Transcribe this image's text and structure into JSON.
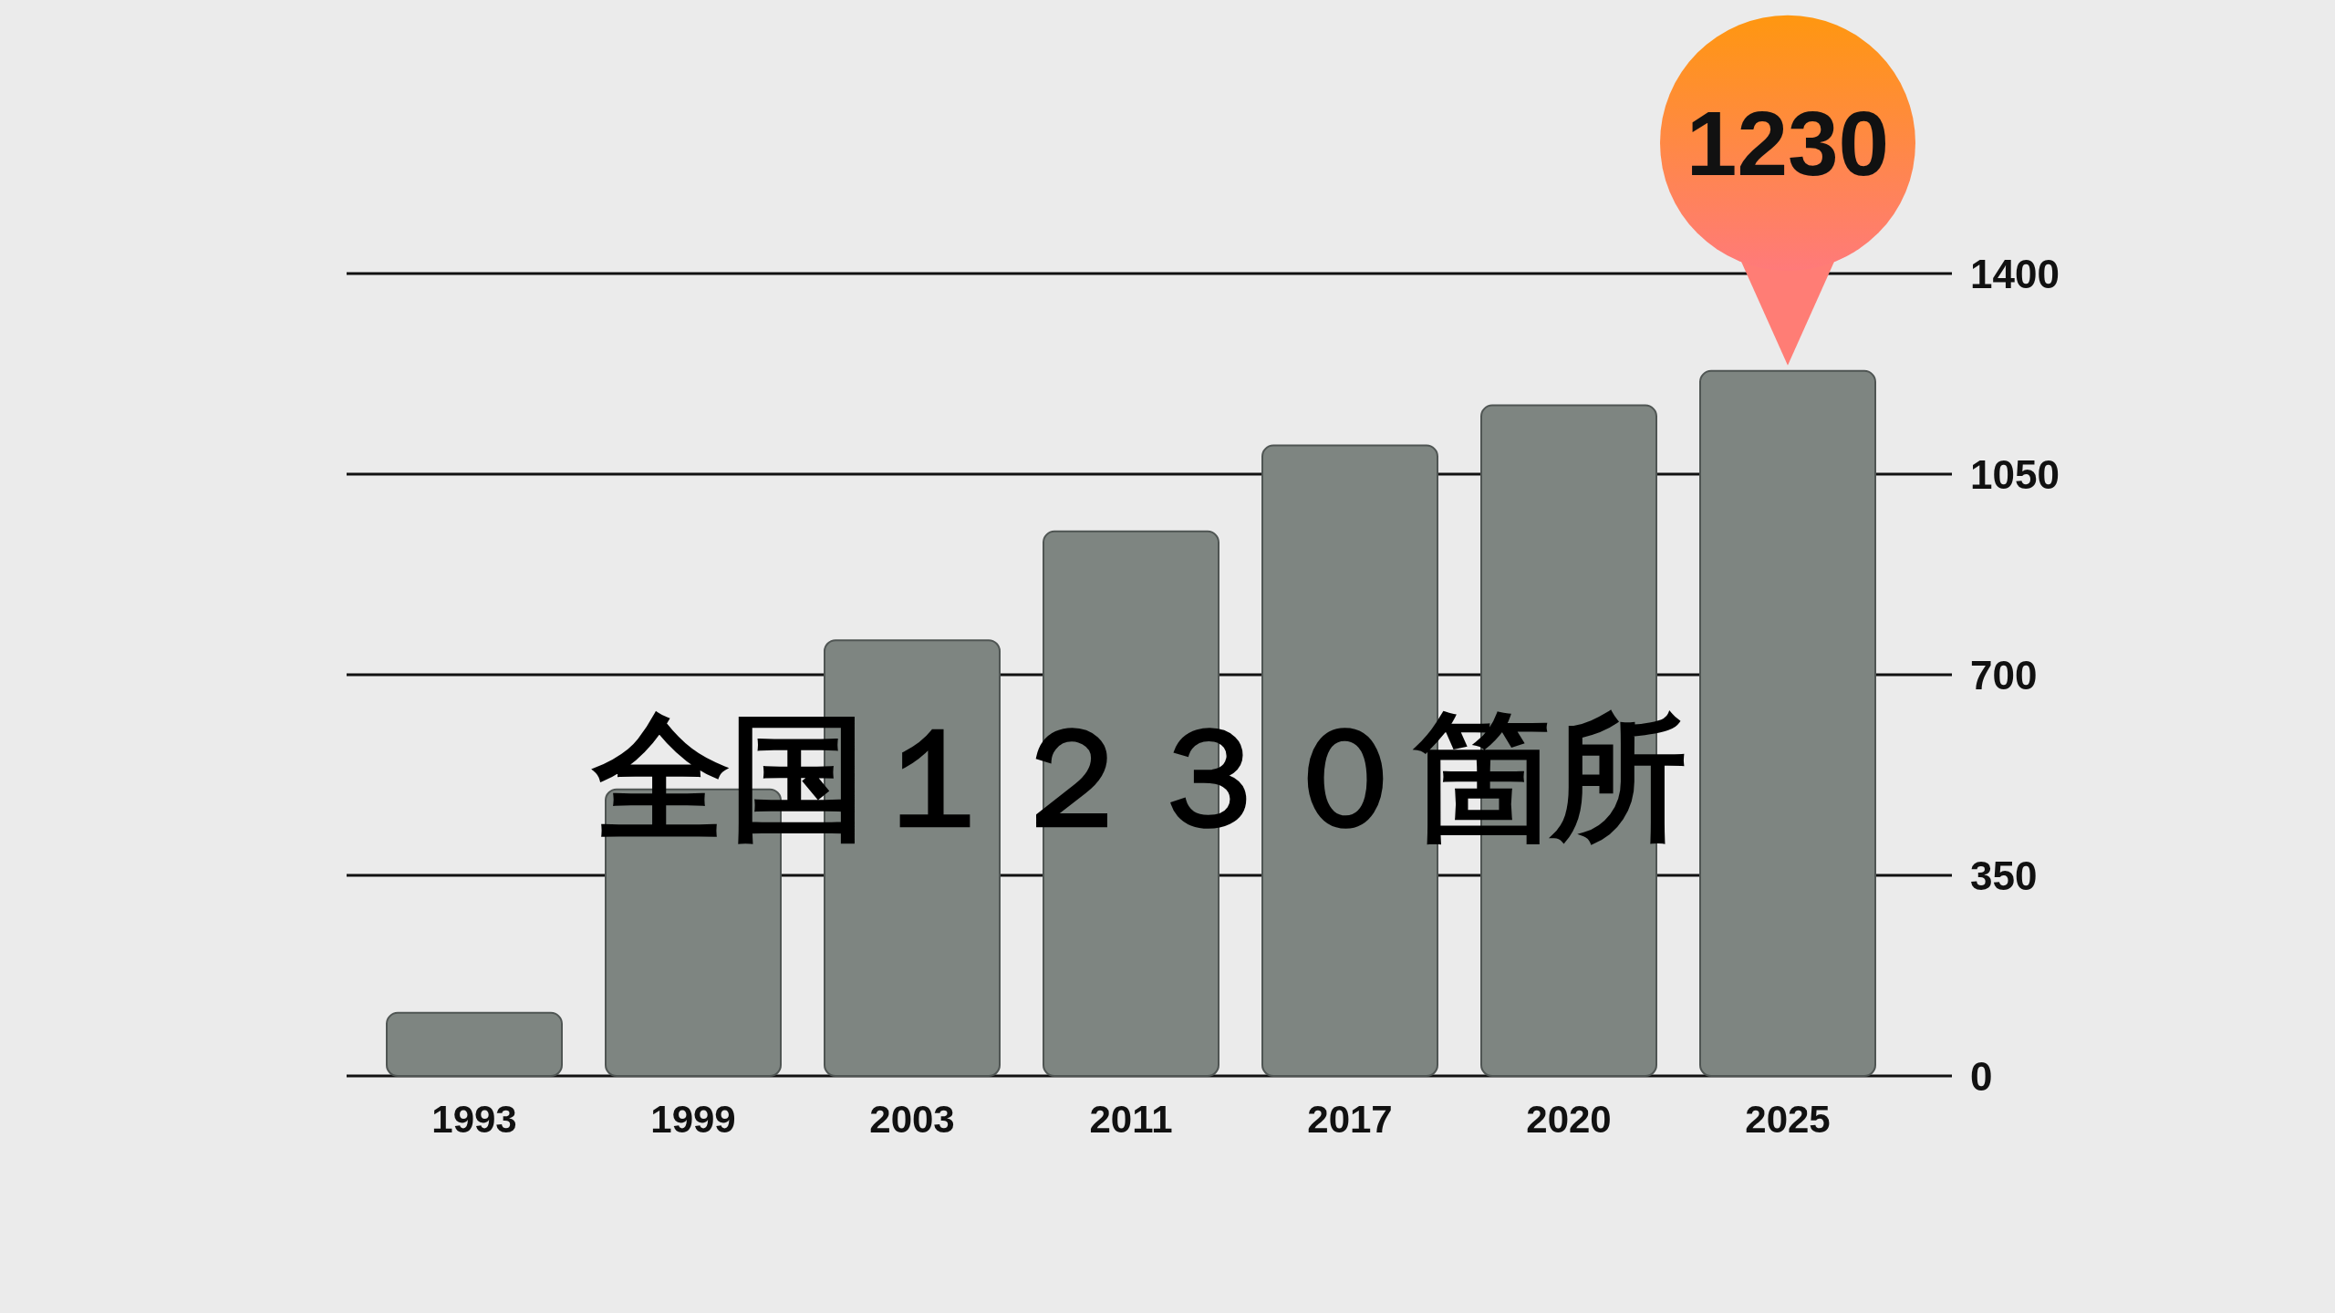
{
  "chart_data": {
    "type": "bar",
    "categories": [
      "1993",
      "1999",
      "2003",
      "2011",
      "2017",
      "2020",
      "2025"
    ],
    "values": [
      110,
      500,
      760,
      950,
      1100,
      1170,
      1230
    ],
    "color": "#7e8581",
    "value_labels": [
      null,
      null,
      null,
      null,
      null,
      null,
      "1230"
    ],
    "ylim": [
      0,
      1400
    ],
    "yticks": [
      0,
      350,
      700,
      1050,
      1400
    ],
    "grid": "y",
    "annotations": [
      "全国１２３０箇所"
    ]
  }
}
